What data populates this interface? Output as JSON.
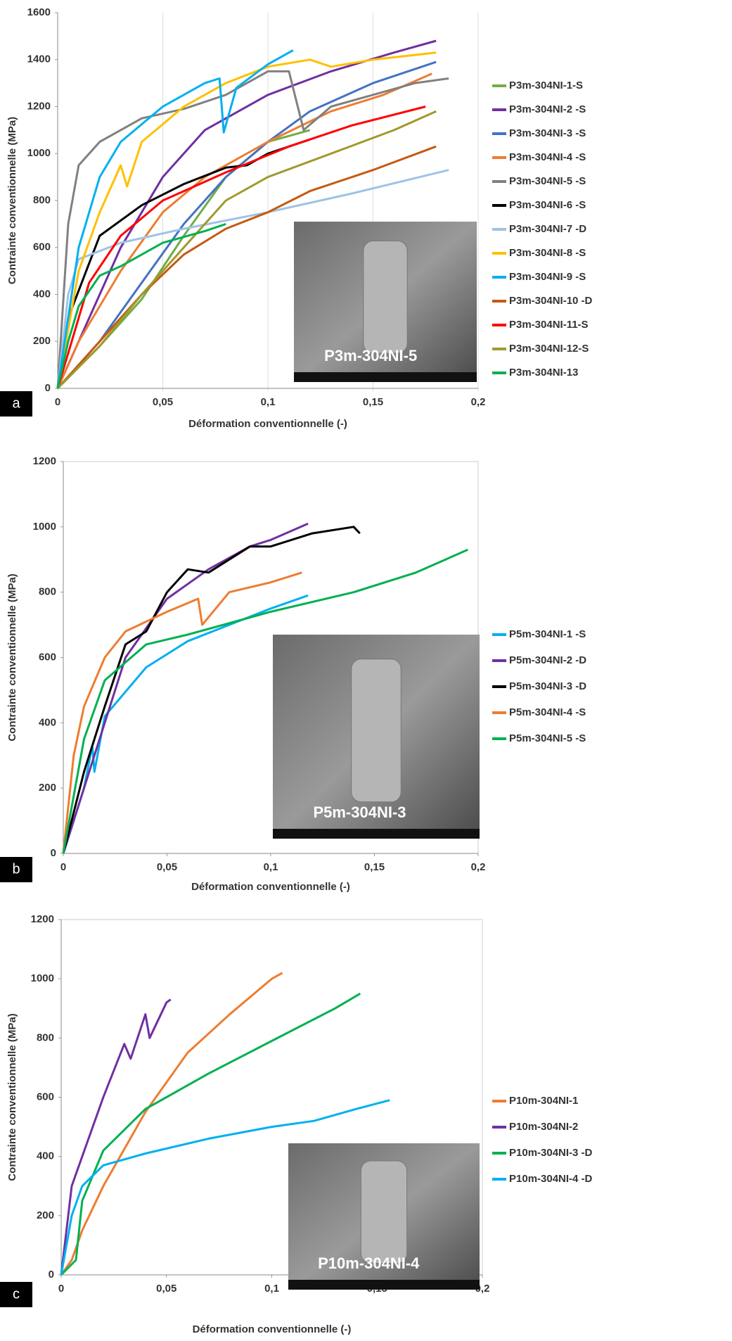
{
  "chart_data": [
    {
      "type": "line",
      "panel_label": "a",
      "x_label": "Déformation conventionnelle (-)",
      "y_label": "Contrainte conventionnelle (MPa)",
      "inset_label": "P3m-304NI-5",
      "grid": true,
      "xlim": [
        0,
        0.2
      ],
      "xticks": [
        0,
        {
          "value": 0.05,
          "label": "0,05"
        },
        {
          "value": 0.1,
          "label": "0,1"
        },
        {
          "value": 0.15,
          "label": "0,15"
        },
        {
          "value": 0.2,
          "label": "0,2"
        }
      ],
      "ylim": [
        0,
        1600
      ],
      "yticks": [
        0,
        200,
        400,
        600,
        800,
        1000,
        1200,
        1400,
        1600
      ],
      "series": [
        {
          "name": "P3m-304NI-1-S",
          "color": "#70ad47",
          "x": [
            0,
            0.02,
            0.04,
            0.06,
            0.08,
            0.1,
            0.12
          ],
          "values": [
            0,
            180,
            380,
            650,
            900,
            1050,
            1100
          ]
        },
        {
          "name": "P3m-304NI-2 -S",
          "color": "#7030a0",
          "x": [
            0,
            0.01,
            0.03,
            0.05,
            0.07,
            0.1,
            0.13,
            0.16,
            0.18
          ],
          "values": [
            0,
            200,
            600,
            900,
            1100,
            1250,
            1350,
            1430,
            1480
          ]
        },
        {
          "name": "P3m-304NI-3 -S",
          "color": "#4472c4",
          "x": [
            0,
            0.02,
            0.04,
            0.06,
            0.08,
            0.1,
            0.12,
            0.15,
            0.18
          ],
          "values": [
            0,
            200,
            450,
            700,
            900,
            1050,
            1180,
            1300,
            1390
          ]
        },
        {
          "name": "P3m-304NI-4 -S",
          "color": "#ed7d31",
          "x": [
            0,
            0.01,
            0.03,
            0.05,
            0.07,
            0.1,
            0.13,
            0.155,
            0.178
          ],
          "values": [
            0,
            200,
            500,
            750,
            900,
            1050,
            1180,
            1250,
            1340
          ]
        },
        {
          "name": "P3m-304NI-5 -S",
          "color": "#808080",
          "x": [
            0,
            0.005,
            0.01,
            0.02,
            0.04,
            0.06,
            0.08,
            0.1,
            0.11,
            0.117,
            0.13,
            0.15,
            0.17,
            0.186
          ],
          "values": [
            0,
            700,
            950,
            1050,
            1150,
            1190,
            1250,
            1350,
            1350,
            1100,
            1200,
            1250,
            1300,
            1320
          ]
        },
        {
          "name": "P3m-304NI-6 -S",
          "color": "#000000",
          "x": [
            0,
            0.005,
            0.02,
            0.04,
            0.06,
            0.08,
            0.09,
            0.1,
            0.12
          ],
          "values": [
            0,
            300,
            650,
            780,
            870,
            940,
            950,
            1000,
            1060
          ]
        },
        {
          "name": "P3m-304NI-7 -D",
          "color": "#9dc3e6",
          "x": [
            0,
            0.005,
            0.01,
            0.03,
            0.06,
            0.1,
            0.14,
            0.186
          ],
          "values": [
            0,
            400,
            550,
            620,
            680,
            750,
            830,
            930
          ]
        },
        {
          "name": "P3m-304NI-8 -S",
          "color": "#ffc000",
          "x": [
            0,
            0.01,
            0.02,
            0.03,
            0.033,
            0.04,
            0.06,
            0.08,
            0.1,
            0.12,
            0.13,
            0.15,
            0.18
          ],
          "values": [
            0,
            500,
            750,
            950,
            860,
            1050,
            1200,
            1300,
            1370,
            1400,
            1370,
            1400,
            1430
          ]
        },
        {
          "name": "P3m-304NI-9 -S",
          "color": "#00b0f0",
          "x": [
            0,
            0.005,
            0.01,
            0.02,
            0.03,
            0.05,
            0.07,
            0.077,
            0.079,
            0.085,
            0.1,
            0.112
          ],
          "values": [
            0,
            300,
            600,
            900,
            1050,
            1200,
            1300,
            1320,
            1090,
            1280,
            1380,
            1440
          ]
        },
        {
          "name": "P3m-304NI-10 -D",
          "color": "#c55a11",
          "x": [
            0,
            0.02,
            0.04,
            0.06,
            0.08,
            0.1,
            0.12,
            0.15,
            0.18
          ],
          "values": [
            0,
            200,
            400,
            570,
            680,
            750,
            840,
            930,
            1030
          ]
        },
        {
          "name": "P3m-304NI-11-S",
          "color": "#ff0000",
          "x": [
            0,
            0.005,
            0.015,
            0.03,
            0.05,
            0.08,
            0.11,
            0.14,
            0.175
          ],
          "values": [
            0,
            150,
            450,
            650,
            800,
            920,
            1030,
            1120,
            1200
          ]
        },
        {
          "name": "P3m-304NI-12-S",
          "color": "#a09a2c",
          "x": [
            0,
            0.02,
            0.04,
            0.06,
            0.08,
            0.1,
            0.13,
            0.16,
            0.18
          ],
          "values": [
            0,
            180,
            400,
            600,
            800,
            900,
            1000,
            1100,
            1180
          ]
        },
        {
          "name": "P3m-304NI-13",
          "color": "#00b050",
          "x": [
            0,
            0.005,
            0.01,
            0.02,
            0.03,
            0.05,
            0.07,
            0.08
          ],
          "values": [
            0,
            200,
            350,
            480,
            520,
            620,
            670,
            700
          ]
        }
      ]
    },
    {
      "type": "line",
      "panel_label": "b",
      "x_label": "Déformation conventionnelle (-)",
      "y_label": "Contrainte conventionnelle (MPa)",
      "inset_label": "P5m-304NI-3",
      "grid": false,
      "xlim": [
        0,
        0.2
      ],
      "xticks": [
        0,
        {
          "value": 0.05,
          "label": "0,05"
        },
        {
          "value": 0.1,
          "label": "0,1"
        },
        {
          "value": 0.15,
          "label": "0,15"
        },
        {
          "value": 0.2,
          "label": "0,2"
        }
      ],
      "ylim": [
        0,
        1200
      ],
      "yticks": [
        0,
        200,
        400,
        600,
        800,
        1000,
        1200
      ],
      "series": [
        {
          "name": "P5m-304NI-1 -S",
          "color": "#00b0f0",
          "x": [
            0,
            0.01,
            0.014,
            0.015,
            0.02,
            0.04,
            0.06,
            0.08,
            0.1,
            0.118
          ],
          "values": [
            0,
            200,
            330,
            250,
            420,
            570,
            650,
            700,
            750,
            790
          ]
        },
        {
          "name": "P5m-304NI-2 -D",
          "color": "#7030a0",
          "x": [
            0,
            0.01,
            0.02,
            0.03,
            0.05,
            0.07,
            0.09,
            0.1,
            0.118
          ],
          "values": [
            0,
            200,
            400,
            600,
            780,
            870,
            940,
            960,
            1010
          ]
        },
        {
          "name": "P5m-304NI-3 -D",
          "color": "#000000",
          "x": [
            0,
            0.01,
            0.02,
            0.03,
            0.04,
            0.05,
            0.06,
            0.07,
            0.09,
            0.1,
            0.12,
            0.14,
            0.143
          ],
          "values": [
            0,
            250,
            450,
            640,
            680,
            800,
            870,
            860,
            940,
            940,
            980,
            1000,
            980
          ]
        },
        {
          "name": "P5m-304NI-4 -S",
          "color": "#ed7d31",
          "x": [
            0,
            0.005,
            0.01,
            0.02,
            0.03,
            0.05,
            0.065,
            0.067,
            0.08,
            0.1,
            0.115
          ],
          "values": [
            0,
            300,
            450,
            600,
            680,
            740,
            780,
            700,
            800,
            830,
            860
          ]
        },
        {
          "name": "P5m-304NI-5 -S",
          "color": "#00b050",
          "x": [
            0,
            0.01,
            0.02,
            0.04,
            0.06,
            0.1,
            0.14,
            0.17,
            0.195
          ],
          "values": [
            0,
            350,
            530,
            640,
            670,
            740,
            800,
            860,
            930
          ]
        }
      ]
    },
    {
      "type": "line",
      "panel_label": "c",
      "x_label": "Déformation conventionnelle (-)",
      "y_label": "Contrainte conventionnelle (MPa)",
      "inset_label": "P10m-304NI-4",
      "grid": false,
      "xlim": [
        0,
        0.2
      ],
      "xticks": [
        0,
        {
          "value": 0.05,
          "label": "0,05"
        },
        {
          "value": 0.1,
          "label": "0,1"
        },
        {
          "value": 0.15,
          "label": "0,15"
        },
        {
          "value": 0.2,
          "label": "0,2"
        }
      ],
      "ylim": [
        0,
        1200
      ],
      "yticks": [
        0,
        200,
        400,
        600,
        800,
        1000,
        1200
      ],
      "series": [
        {
          "name": "P10m-304NI-1",
          "color": "#ed7d31",
          "x": [
            0,
            0.005,
            0.01,
            0.02,
            0.04,
            0.06,
            0.08,
            0.1,
            0.105
          ],
          "values": [
            0,
            50,
            150,
            300,
            550,
            750,
            880,
            1000,
            1020
          ]
        },
        {
          "name": "P10m-304NI-2",
          "color": "#7030a0",
          "x": [
            0,
            0.005,
            0.01,
            0.015,
            0.02,
            0.03,
            0.033,
            0.04,
            0.042,
            0.05,
            0.052
          ],
          "values": [
            0,
            300,
            400,
            500,
            600,
            780,
            730,
            880,
            800,
            920,
            930
          ]
        },
        {
          "name": "P10m-304NI-3 -D",
          "color": "#00b050",
          "x": [
            0,
            0.007,
            0.01,
            0.02,
            0.04,
            0.07,
            0.1,
            0.13,
            0.142
          ],
          "values": [
            0,
            50,
            250,
            420,
            560,
            680,
            790,
            900,
            950
          ]
        },
        {
          "name": "P10m-304NI-4 -D",
          "color": "#00b0f0",
          "x": [
            0,
            0.005,
            0.01,
            0.02,
            0.04,
            0.07,
            0.1,
            0.12,
            0.14,
            0.156
          ],
          "values": [
            0,
            200,
            300,
            370,
            410,
            460,
            500,
            520,
            560,
            590
          ]
        }
      ]
    }
  ]
}
